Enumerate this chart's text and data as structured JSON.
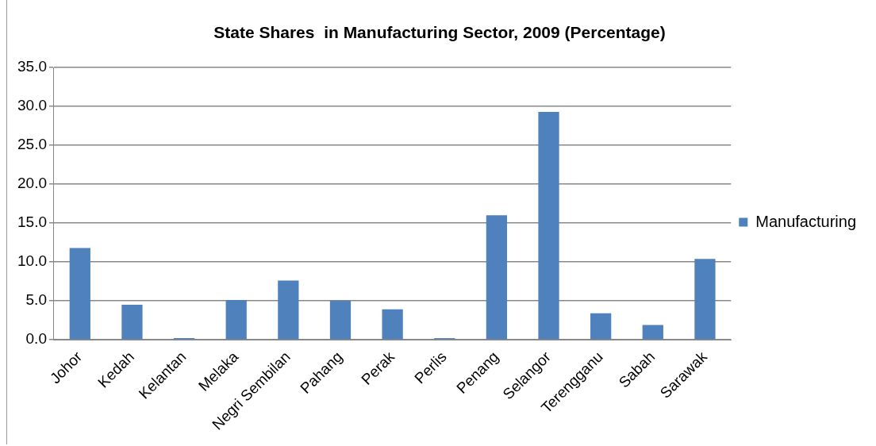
{
  "chart_data": {
    "type": "bar",
    "title": "State Shares  in Manufacturing Sector, 2009 (Percentage)",
    "categories": [
      "Johor",
      "Kedah",
      "Kelantan",
      "Melaka",
      "Negri Sembilan",
      "Pahang",
      "Perak",
      "Perlis",
      "Penang",
      "Selangor",
      "Terengganu",
      "Sabah",
      "Sarawak"
    ],
    "series": [
      {
        "name": "Manufacturing",
        "color": "#4f81bd",
        "values": [
          11.8,
          4.5,
          0.2,
          5.1,
          7.6,
          5.0,
          3.9,
          0.2,
          16.0,
          29.3,
          3.4,
          1.9,
          10.4
        ]
      }
    ],
    "ylim": [
      0,
      35
    ],
    "yticks": [
      {
        "value": 0,
        "label": "0.0"
      },
      {
        "value": 5,
        "label": "5.0"
      },
      {
        "value": 10,
        "label": "10.0"
      },
      {
        "value": 15,
        "label": "15.0"
      },
      {
        "value": 20,
        "label": "20.0"
      },
      {
        "value": 25,
        "label": "25.0"
      },
      {
        "value": 30,
        "label": "30.0"
      },
      {
        "value": 35,
        "label": "35.0"
      }
    ],
    "grid": "y",
    "legend": "right"
  }
}
